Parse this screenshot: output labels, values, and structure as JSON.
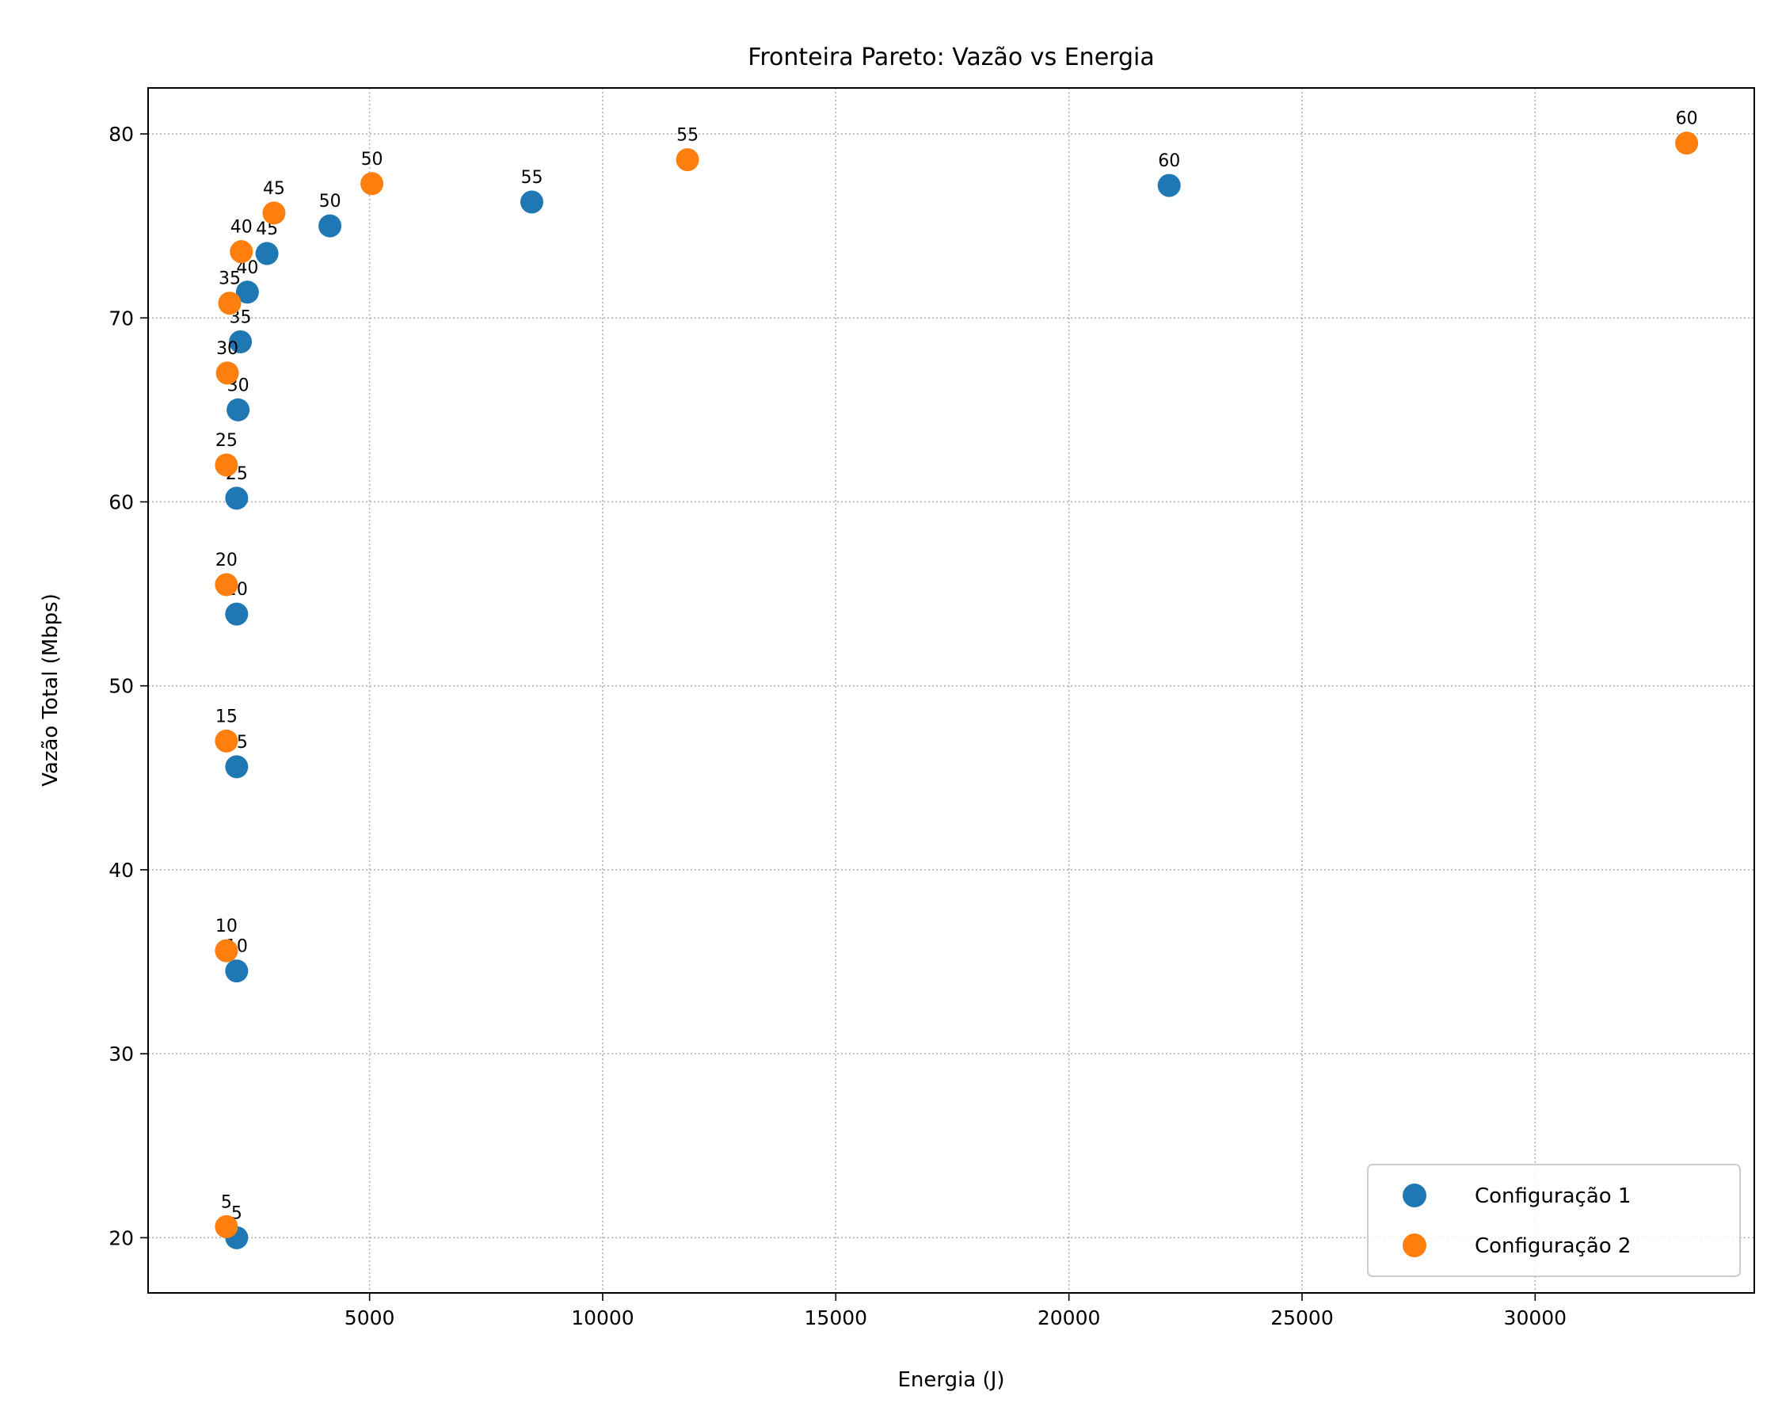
{
  "chart_data": {
    "type": "scatter",
    "title": "Fronteira Pareto: Vazão vs Energia",
    "xlabel": "Energia (J)",
    "ylabel": "Vazão Total (Mbps)",
    "xlim": [
      250,
      34700
    ],
    "ylim": [
      17,
      82.5
    ],
    "xticks": [
      5000,
      10000,
      15000,
      20000,
      25000,
      30000
    ],
    "yticks": [
      20,
      30,
      40,
      50,
      60,
      70,
      80
    ],
    "grid": true,
    "legend_position": "lower-right",
    "series": [
      {
        "name": "Configuração 1",
        "color": "#1f77b4",
        "points": [
          {
            "x": 2150,
            "y": 20.0,
            "label": "5"
          },
          {
            "x": 2150,
            "y": 34.5,
            "label": "10"
          },
          {
            "x": 2150,
            "y": 45.6,
            "label": "15"
          },
          {
            "x": 2150,
            "y": 53.9,
            "label": "20"
          },
          {
            "x": 2150,
            "y": 60.2,
            "label": "25"
          },
          {
            "x": 2180,
            "y": 65.0,
            "label": "30"
          },
          {
            "x": 2230,
            "y": 68.7,
            "label": "35"
          },
          {
            "x": 2380,
            "y": 71.4,
            "label": "40"
          },
          {
            "x": 2800,
            "y": 73.5,
            "label": "45"
          },
          {
            "x": 4150,
            "y": 75.0,
            "label": "50"
          },
          {
            "x": 8480,
            "y": 76.3,
            "label": "55"
          },
          {
            "x": 22150,
            "y": 77.2,
            "label": "60"
          }
        ]
      },
      {
        "name": "Configuração 2",
        "color": "#ff7f0e",
        "points": [
          {
            "x": 1930,
            "y": 20.6,
            "label": "5"
          },
          {
            "x": 1930,
            "y": 35.6,
            "label": "10"
          },
          {
            "x": 1930,
            "y": 47.0,
            "label": "15"
          },
          {
            "x": 1930,
            "y": 55.5,
            "label": "20"
          },
          {
            "x": 1930,
            "y": 62.0,
            "label": "25"
          },
          {
            "x": 1950,
            "y": 67.0,
            "label": "30"
          },
          {
            "x": 2000,
            "y": 70.8,
            "label": "35"
          },
          {
            "x": 2250,
            "y": 73.6,
            "label": "40"
          },
          {
            "x": 2950,
            "y": 75.7,
            "label": "45"
          },
          {
            "x": 5050,
            "y": 77.3,
            "label": "50"
          },
          {
            "x": 11820,
            "y": 78.6,
            "label": "55"
          },
          {
            "x": 33250,
            "y": 79.5,
            "label": "60"
          }
        ]
      }
    ]
  }
}
